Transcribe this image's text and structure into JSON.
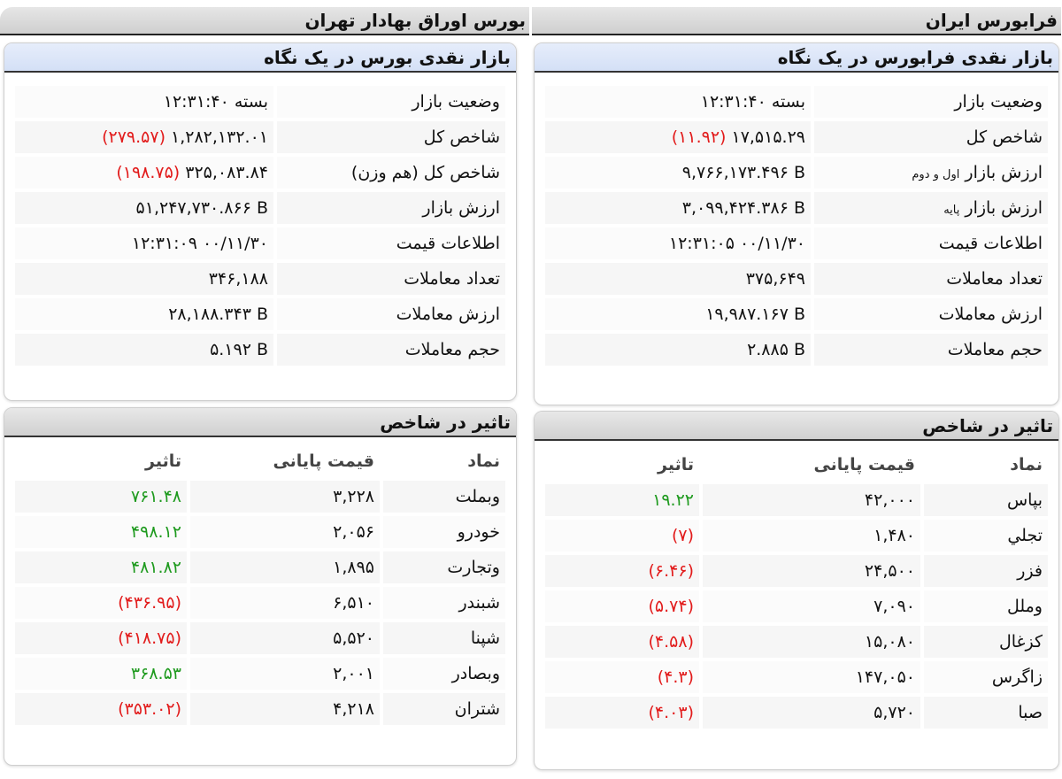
{
  "colors": {
    "negative": "#e21b1b",
    "positive": "#1e9a1e",
    "panel_header": "#d4e0f6"
  },
  "tse": {
    "title": "بورس اوراق بهادار تهران",
    "summary": {
      "title": "بازار نقدی بورس در یک نگاه",
      "rows": [
        {
          "label": "وضعیت بازار",
          "value": "۱۲:۳۱:۴۰ بسته"
        },
        {
          "label": "شاخص کل",
          "value": "۱,۲۸۲,۱۳۲.۰۱",
          "change": "(۲۷۹.۵۷)"
        },
        {
          "label": "شاخص کل (هم وزن)",
          "value": "۳۲۵,۰۸۳.۸۴",
          "change": "(۱۹۸.۷۵)"
        },
        {
          "label": "ارزش بازار",
          "value": "۵۱,۲۴۷,۷۳۰.۸۶۶ B"
        },
        {
          "label": "اطلاعات قیمت",
          "value": "۱۲:۳۱:۰۹ ۰۰/۱۱/۳۰"
        },
        {
          "label": "تعداد معاملات",
          "value": "۳۴۶,۱۸۸"
        },
        {
          "label": "ارزش معاملات",
          "value": "۲۸,۱۸۸.۳۴۳ B"
        },
        {
          "label": "حجم معاملات",
          "value": "۵.۱۹۲ B"
        }
      ]
    },
    "impact": {
      "title": "تاثیر در شاخص",
      "headers": [
        "نماد",
        "قیمت پایانی",
        "تاثیر"
      ],
      "rows": [
        {
          "symbol": "وبملت",
          "price": "۳,۲۲۸",
          "impact": "۷۶۱.۴۸",
          "positive": true
        },
        {
          "symbol": "خودرو",
          "price": "۲,۰۵۶",
          "impact": "۴۹۸.۱۲",
          "positive": true
        },
        {
          "symbol": "وتجارت",
          "price": "۱,۸۹۵",
          "impact": "۴۸۱.۸۲",
          "positive": true
        },
        {
          "symbol": "شبندر",
          "price": "۶,۵۱۰",
          "impact": "(۴۳۶.۹۵)",
          "positive": false
        },
        {
          "symbol": "شپنا",
          "price": "۵,۵۲۰",
          "impact": "(۴۱۸.۷۵)",
          "positive": false
        },
        {
          "symbol": "وبصادر",
          "price": "۲,۰۰۱",
          "impact": "۳۶۸.۵۳",
          "positive": true
        },
        {
          "symbol": "شتران",
          "price": "۴,۲۱۸",
          "impact": "(۳۵۳.۰۲)",
          "positive": false
        }
      ]
    }
  },
  "ifb": {
    "title": "فرابورس ایران",
    "summary": {
      "title": "بازار نقدی فرابورس در یک نگاه",
      "rows": [
        {
          "label": "وضعیت بازار",
          "value": "۱۲:۳۱:۴۰ بسته"
        },
        {
          "label": "شاخص کل",
          "value": "۱۷,۵۱۵.۲۹",
          "change": "(۱۱.۹۲)"
        },
        {
          "label": "ارزش بازار",
          "sub": "اول و دوم",
          "value": "۹,۷۶۶,۱۷۳.۴۹۶ B"
        },
        {
          "label": "ارزش بازار",
          "sub": "پایه",
          "value": "۳,۰۹۹,۴۲۴.۳۸۶ B"
        },
        {
          "label": "اطلاعات قیمت",
          "value": "۱۲:۳۱:۰۵ ۰۰/۱۱/۳۰"
        },
        {
          "label": "تعداد معاملات",
          "value": "۳۷۵,۶۴۹"
        },
        {
          "label": "ارزش معاملات",
          "value": "۱۹,۹۸۷.۱۶۷ B"
        },
        {
          "label": "حجم معاملات",
          "value": "۲.۸۸۵ B"
        }
      ]
    },
    "impact": {
      "title": "تاثیر در شاخص",
      "headers": [
        "نماد",
        "قیمت پایانی",
        "تاثیر"
      ],
      "rows": [
        {
          "symbol": "بپاس",
          "price": "۴۲,۰۰۰",
          "impact": "۱۹.۲۲",
          "positive": true
        },
        {
          "symbol": "تجلي",
          "price": "۱,۴۸۰",
          "impact": "(۷)",
          "positive": false
        },
        {
          "symbol": "فزر",
          "price": "۲۴,۵۰۰",
          "impact": "(۶.۴۶)",
          "positive": false
        },
        {
          "symbol": "وملل",
          "price": "۷,۰۹۰",
          "impact": "(۵.۷۴)",
          "positive": false
        },
        {
          "symbol": "کزغال",
          "price": "۱۵,۰۸۰",
          "impact": "(۴.۵۸)",
          "positive": false
        },
        {
          "symbol": "زاگرس",
          "price": "۱۴۷,۰۵۰",
          "impact": "(۴.۳)",
          "positive": false
        },
        {
          "symbol": "صبا",
          "price": "۵,۷۲۰",
          "impact": "(۴.۰۳)",
          "positive": false
        }
      ]
    }
  }
}
